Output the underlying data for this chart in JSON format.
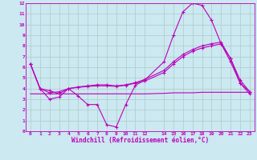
{
  "xlabel": "Windchill (Refroidissement éolien,°C)",
  "xlim": [
    -0.5,
    23.5
  ],
  "ylim": [
    0,
    12
  ],
  "xticks": [
    0,
    1,
    2,
    3,
    4,
    5,
    6,
    7,
    8,
    9,
    10,
    11,
    12,
    14,
    15,
    16,
    17,
    18,
    19,
    20,
    21,
    22,
    23
  ],
  "yticks": [
    0,
    1,
    2,
    3,
    4,
    5,
    6,
    7,
    8,
    9,
    10,
    11,
    12
  ],
  "bg_color": "#cce8f0",
  "grid_color": "#aacccc",
  "line_color": "#bb00bb",
  "line1_x": [
    0,
    1,
    2,
    3,
    4,
    5,
    6,
    7,
    8,
    9,
    10,
    11,
    12,
    14,
    15,
    16,
    17,
    18,
    19,
    20,
    21,
    22,
    23
  ],
  "line1_y": [
    6.3,
    4.0,
    3.0,
    3.2,
    4.0,
    3.3,
    2.5,
    2.5,
    0.6,
    0.4,
    2.5,
    4.3,
    4.8,
    6.5,
    9.0,
    11.2,
    12.0,
    11.8,
    10.4,
    8.2,
    6.8,
    4.5,
    3.7
  ],
  "line2_x": [
    0,
    1,
    2,
    3,
    4,
    5,
    6,
    7,
    8,
    9,
    10,
    11,
    12,
    14,
    15,
    16,
    17,
    18,
    19,
    20,
    21,
    22,
    23
  ],
  "line2_y": [
    6.3,
    4.0,
    3.8,
    3.5,
    4.0,
    4.1,
    4.2,
    4.25,
    4.25,
    4.2,
    4.3,
    4.5,
    4.7,
    5.5,
    6.3,
    7.0,
    7.5,
    7.8,
    8.0,
    8.2,
    6.5,
    4.5,
    3.5
  ],
  "line3_x": [
    0,
    1,
    2,
    3,
    4,
    5,
    6,
    7,
    8,
    9,
    10,
    11,
    12,
    14,
    15,
    16,
    17,
    18,
    19,
    20,
    21,
    22,
    23
  ],
  "line3_y": [
    6.3,
    4.0,
    3.6,
    3.7,
    4.0,
    4.15,
    4.25,
    4.35,
    4.35,
    4.25,
    4.35,
    4.55,
    4.85,
    5.7,
    6.5,
    7.2,
    7.65,
    8.0,
    8.2,
    8.35,
    6.8,
    4.8,
    3.7
  ],
  "line4_x": [
    0,
    1,
    2,
    3,
    4,
    5,
    6,
    7,
    8,
    9,
    10,
    11,
    12,
    14,
    15,
    16,
    17,
    18,
    19,
    20,
    21,
    22,
    23
  ],
  "line4_y": [
    3.5,
    3.5,
    3.5,
    3.5,
    3.5,
    3.5,
    3.5,
    3.5,
    3.5,
    3.5,
    3.5,
    3.5,
    3.5,
    3.55,
    3.6,
    3.6,
    3.6,
    3.65,
    3.65,
    3.65,
    3.65,
    3.65,
    3.65
  ]
}
